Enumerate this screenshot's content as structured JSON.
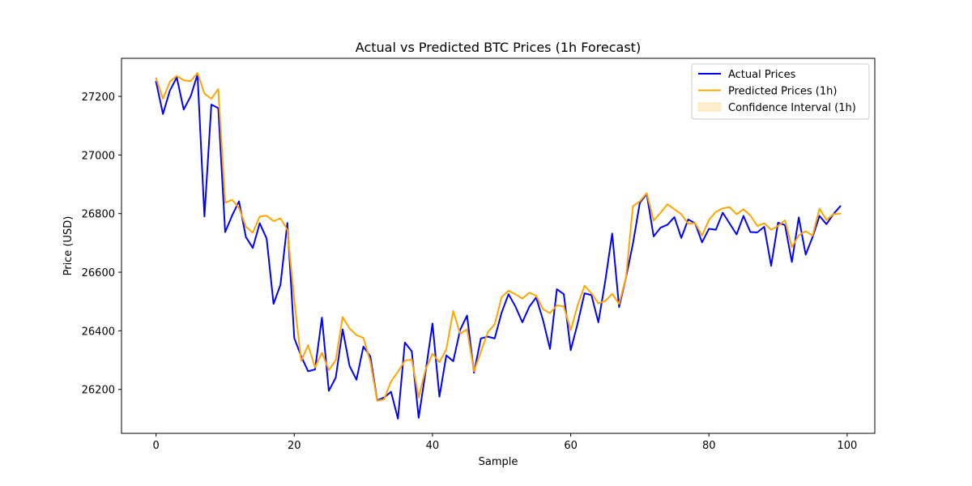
{
  "chart_data": {
    "type": "line",
    "title": "Actual vs Predicted BTC Prices (1h Forecast)",
    "xlabel": "Sample",
    "ylabel": "Price (USD)",
    "xlim": [
      -5,
      104
    ],
    "ylim": [
      26050,
      27330
    ],
    "xticks": [
      0,
      20,
      40,
      60,
      80,
      100
    ],
    "yticks": [
      26200,
      26400,
      26600,
      26800,
      27000,
      27200
    ],
    "grid": false,
    "legend": "top-right",
    "series": [
      {
        "name": "Actual Prices",
        "color": "#0000ff",
        "x": [
          0,
          1,
          2,
          3,
          4,
          5,
          6,
          7,
          8,
          9,
          10,
          11,
          12,
          13,
          14,
          15,
          16,
          17,
          18,
          19,
          20,
          21,
          22,
          23,
          24,
          25,
          26,
          27,
          28,
          29,
          30,
          31,
          32,
          33,
          34,
          35,
          36,
          37,
          38,
          39,
          40,
          41,
          42,
          43,
          44,
          45,
          46,
          47,
          48,
          49,
          50,
          51,
          52,
          53,
          54,
          55,
          56,
          57,
          58,
          59,
          60,
          61,
          62,
          63,
          64,
          65,
          66,
          67,
          68,
          69,
          70,
          71,
          72,
          73,
          74,
          75,
          76,
          77,
          78,
          79,
          80,
          81,
          82,
          83,
          84,
          85,
          86,
          87,
          88,
          89,
          90,
          91,
          92,
          93,
          94,
          95,
          96,
          97,
          98,
          99
        ],
        "values": [
          27250,
          27140,
          27220,
          27265,
          27155,
          27200,
          27275,
          26790,
          27172,
          27160,
          26737,
          26793,
          26842,
          26720,
          26683,
          26767,
          26715,
          26492,
          26557,
          26768,
          26375,
          26313,
          26262,
          26268,
          26445,
          26195,
          26240,
          26405,
          26280,
          26233,
          26346,
          26313,
          26163,
          26172,
          26192,
          26100,
          26360,
          26330,
          26103,
          26260,
          26425,
          26175,
          26316,
          26296,
          26403,
          26452,
          26257,
          26374,
          26380,
          26374,
          26462,
          26525,
          26483,
          26429,
          26482,
          26514,
          26436,
          26338,
          26542,
          26525,
          26334,
          26425,
          26528,
          26522,
          26429,
          26570,
          26732,
          26481,
          26582,
          26697,
          26837,
          26867,
          26722,
          26752,
          26762,
          26788,
          26717,
          26780,
          26767,
          26702,
          26748,
          26745,
          26803,
          26766,
          26729,
          26792,
          26737,
          26736,
          26755,
          26622,
          26769,
          26761,
          26635,
          26787,
          26660,
          26720,
          26792,
          26764,
          26798,
          26825
        ]
      },
      {
        "name": "Predicted Prices (1h)",
        "color": "#ffa500",
        "x": [
          0,
          1,
          2,
          3,
          4,
          5,
          6,
          7,
          8,
          9,
          10,
          11,
          12,
          13,
          14,
          15,
          16,
          17,
          18,
          19,
          20,
          21,
          22,
          23,
          24,
          25,
          26,
          27,
          28,
          29,
          30,
          31,
          32,
          33,
          34,
          35,
          36,
          37,
          38,
          39,
          40,
          41,
          42,
          43,
          44,
          45,
          46,
          47,
          48,
          49,
          50,
          51,
          52,
          53,
          54,
          55,
          56,
          57,
          58,
          59,
          60,
          61,
          62,
          63,
          64,
          65,
          66,
          67,
          68,
          69,
          70,
          71,
          72,
          73,
          74,
          75,
          76,
          77,
          78,
          79,
          80,
          81,
          82,
          83,
          84,
          85,
          86,
          87,
          88,
          89,
          90,
          91,
          92,
          93,
          94,
          95,
          96,
          97,
          98,
          99
        ],
        "values": [
          27262,
          27192,
          27250,
          27270,
          27255,
          27252,
          27280,
          27210,
          27192,
          27225,
          26837,
          26847,
          26820,
          26755,
          26735,
          26790,
          26793,
          26774,
          26784,
          26745,
          26505,
          26297,
          26351,
          26275,
          26325,
          26266,
          26300,
          26447,
          26408,
          26385,
          26376,
          26295,
          26161,
          26166,
          26227,
          26260,
          26298,
          26302,
          26172,
          26268,
          26322,
          26293,
          26337,
          26468,
          26390,
          26405,
          26262,
          26328,
          26395,
          26422,
          26515,
          26537,
          26525,
          26510,
          26530,
          26520,
          26474,
          26460,
          26487,
          26483,
          26402,
          26487,
          26554,
          26528,
          26494,
          26502,
          26526,
          26492,
          26583,
          26825,
          26842,
          26870,
          26776,
          26803,
          26832,
          26815,
          26798,
          26765,
          26768,
          26725,
          26778,
          26806,
          26818,
          26822,
          26798,
          26815,
          26793,
          26758,
          26767,
          26745,
          26758,
          26777,
          26685,
          26726,
          26740,
          26725,
          26817,
          26778,
          26798,
          26800
        ]
      }
    ],
    "confidence_band": {
      "name": "Confidence Interval (1h)",
      "color": "#ffa500",
      "opacity": 0.2
    }
  }
}
